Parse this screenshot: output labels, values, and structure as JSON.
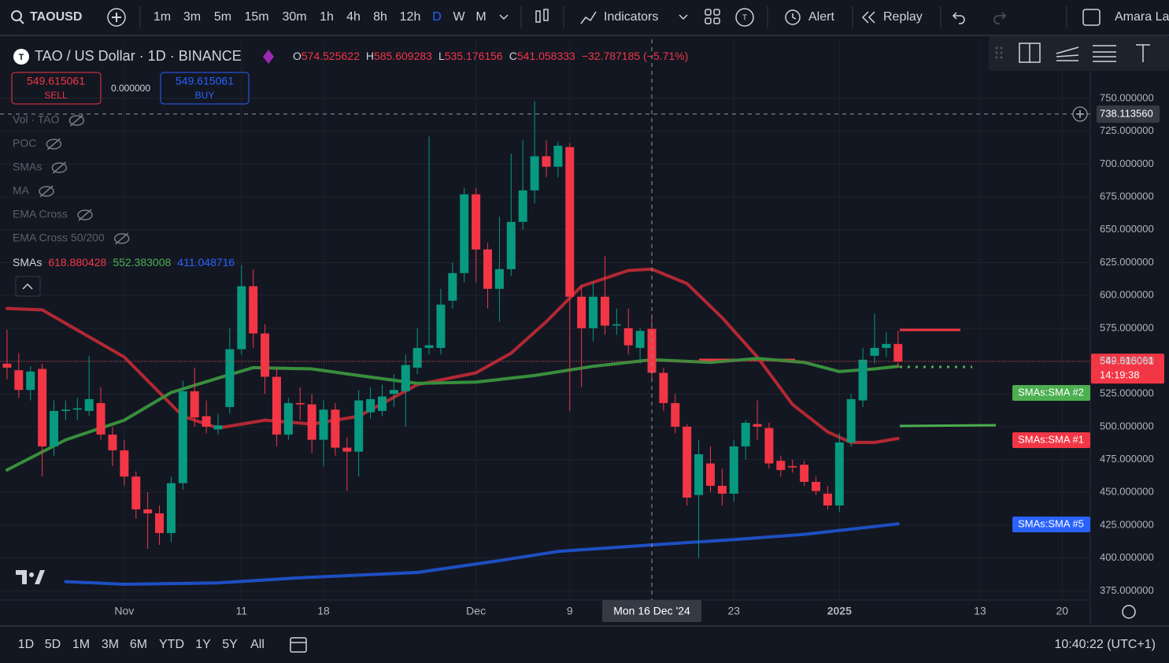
{
  "toolbar": {
    "symbol": "TAOUSD",
    "intervals": [
      "1m",
      "3m",
      "5m",
      "15m",
      "30m",
      "1h",
      "4h",
      "8h",
      "12h",
      "D",
      "W",
      "M"
    ],
    "indicators": "Indicators",
    "alert": "Alert",
    "replay": "Replay",
    "user": "Amara La"
  },
  "legend": {
    "title": "TAO / US Dollar · 1D · BINANCE",
    "ohlc_letters": [
      "O",
      "H",
      "L",
      "C"
    ],
    "change": "−32.787185 (−5.71%)",
    "sell": {
      "price": 549.615061,
      "label": "SELL"
    },
    "spread": "0.000000",
    "buy": {
      "price": 549.615061,
      "label": "BUY"
    },
    "hidden_indicators": [
      "Vol · TAO",
      "POC",
      "SMAs",
      "MA",
      "EMA Cross",
      "EMA Cross 50/200"
    ],
    "sma_label": "SMAs",
    "sma_values": [
      618.880428,
      552.383008,
      411.048716
    ]
  },
  "chart_data": {
    "type": "candlestick",
    "xlim": [
      -0.6,
      92.4
    ],
    "ylim": [
      368,
      795
    ],
    "up_color": "#089981",
    "down_color": "#f23645",
    "grid": true,
    "xticks": [
      {
        "value": 10,
        "label": "Nov"
      },
      {
        "value": 20,
        "label": "11"
      },
      {
        "value": 27,
        "label": "18"
      },
      {
        "value": 40,
        "label": "Dec"
      },
      {
        "value": 48,
        "label": "9"
      },
      {
        "value": 62,
        "label": "23"
      },
      {
        "value": 71,
        "label": "2025"
      },
      {
        "value": 83,
        "label": "13"
      },
      {
        "value": 90,
        "label": "20"
      }
    ],
    "yticks": [
      {
        "value": 375,
        "label": "375.000000"
      },
      {
        "value": 400,
        "label": "400.000000"
      },
      {
        "value": 425,
        "label": "425.000000"
      },
      {
        "value": 450,
        "label": "450.000000"
      },
      {
        "value": 475,
        "label": "475.000000"
      },
      {
        "value": 500,
        "label": "500.000000"
      },
      {
        "value": 525,
        "label": "525.000000"
      },
      {
        "value": 550,
        "label": "550.000000"
      },
      {
        "value": 575,
        "label": "575.000000"
      },
      {
        "value": 600,
        "label": "600.000000"
      },
      {
        "value": 625,
        "label": "625.000000"
      },
      {
        "value": 650,
        "label": "650.000000"
      },
      {
        "value": 675,
        "label": "675.000000"
      },
      {
        "value": 700,
        "label": "700.000000"
      },
      {
        "value": 725,
        "label": "725.000000"
      },
      {
        "value": 750,
        "label": "750.000000"
      }
    ],
    "candles": [
      [
        548,
        574,
        536,
        545
      ],
      [
        543,
        556,
        522,
        528
      ],
      [
        528,
        546,
        520,
        542
      ],
      [
        544,
        548,
        462,
        485
      ],
      [
        485,
        520,
        478,
        512
      ],
      [
        512,
        520,
        505,
        513
      ],
      [
        513,
        522,
        505,
        514
      ],
      [
        512,
        554,
        508,
        521
      ],
      [
        518,
        530,
        490,
        494
      ],
      [
        494,
        500,
        470,
        482
      ],
      [
        482,
        490,
        455,
        462
      ],
      [
        462,
        466,
        430,
        437
      ],
      [
        437,
        450,
        407,
        434
      ],
      [
        434,
        440,
        410,
        419
      ],
      [
        419,
        462,
        412,
        457
      ],
      [
        457,
        535,
        452,
        527
      ],
      [
        527,
        545,
        500,
        507
      ],
      [
        508,
        520,
        495,
        500
      ],
      [
        498,
        510,
        494,
        501
      ],
      [
        515,
        575,
        510,
        559
      ],
      [
        559,
        623,
        555,
        607
      ],
      [
        607,
        620,
        560,
        571
      ],
      [
        571,
        578,
        525,
        538
      ],
      [
        538,
        545,
        485,
        494
      ],
      [
        494,
        522,
        490,
        518
      ],
      [
        518,
        530,
        505,
        517
      ],
      [
        517,
        525,
        480,
        490
      ],
      [
        490,
        520,
        470,
        513
      ],
      [
        513,
        518,
        478,
        484
      ],
      [
        484,
        492,
        451,
        481
      ],
      [
        481,
        528,
        462,
        520
      ],
      [
        511,
        530,
        506,
        521
      ],
      [
        512,
        532,
        508,
        523
      ],
      [
        525,
        540,
        515,
        528
      ],
      [
        527,
        555,
        500,
        547
      ],
      [
        545,
        575,
        540,
        560
      ],
      [
        560,
        721,
        555,
        562
      ],
      [
        560,
        605,
        555,
        593
      ],
      [
        596,
        625,
        590,
        617
      ],
      [
        617,
        682,
        610,
        677
      ],
      [
        677,
        682,
        610,
        635
      ],
      [
        635,
        640,
        590,
        605
      ],
      [
        605,
        660,
        580,
        620
      ],
      [
        620,
        708,
        615,
        656
      ],
      [
        656,
        718,
        650,
        680
      ],
      [
        680,
        748,
        670,
        706
      ],
      [
        706,
        718,
        690,
        698
      ],
      [
        698,
        717,
        690,
        714
      ],
      [
        713,
        716,
        512,
        599
      ],
      [
        599,
        608,
        530,
        575
      ],
      [
        575,
        610,
        565,
        599
      ],
      [
        599,
        630,
        570,
        577
      ],
      [
        577,
        590,
        570,
        578
      ],
      [
        575,
        590,
        555,
        562
      ],
      [
        560,
        575,
        548,
        573
      ],
      [
        574.525622,
        585.609283,
        535.176156,
        541.058333
      ],
      [
        541,
        545,
        512,
        518
      ],
      [
        518,
        525,
        495,
        500
      ],
      [
        500,
        502,
        440,
        446
      ],
      [
        448,
        490,
        400,
        479
      ],
      [
        472,
        485,
        450,
        455
      ],
      [
        455,
        468,
        440,
        449
      ],
      [
        449,
        490,
        443,
        485
      ],
      [
        485,
        505,
        475,
        503
      ],
      [
        502,
        520,
        490,
        500
      ],
      [
        499,
        503,
        468,
        472
      ],
      [
        474,
        478,
        462,
        467
      ],
      [
        470,
        475,
        465,
        469
      ],
      [
        471,
        474,
        455,
        458
      ],
      [
        458,
        462,
        448,
        451
      ],
      [
        449,
        455,
        437,
        440
      ],
      [
        440,
        495,
        435,
        488
      ],
      [
        488,
        525,
        485,
        521
      ],
      [
        520,
        560,
        515,
        551
      ],
      [
        554,
        586,
        548,
        560
      ],
      [
        560,
        572,
        553,
        563
      ],
      [
        563,
        573,
        545,
        549.615061
      ]
    ],
    "series": [
      {
        "name": "SMAs:SMA #1",
        "color": "#b22833",
        "x": [
          0,
          3,
          10,
          15,
          18,
          22,
          26,
          30,
          35,
          40,
          43,
          46,
          49,
          53,
          55,
          58,
          61,
          64,
          67,
          70,
          72,
          74,
          76
        ],
        "values": [
          590,
          589,
          553,
          508,
          499,
          505,
          502,
          508,
          532,
          541,
          556,
          580,
          607,
          619,
          620,
          609,
          583,
          553,
          517,
          496,
          488,
          488,
          491
        ]
      },
      {
        "name": "SMAs:SMA #2",
        "color": "#388e3c",
        "x": [
          0,
          5,
          10,
          14,
          18,
          21,
          26,
          30,
          35,
          40,
          45,
          50,
          55,
          60,
          64,
          68,
          71,
          74,
          76
        ],
        "values": [
          467,
          490,
          505,
          526,
          537,
          545,
          544,
          539,
          533,
          534,
          539,
          546,
          551,
          549,
          552,
          549,
          542,
          544,
          546
        ]
      },
      {
        "name": "SMAs:SMA #5",
        "color": "#1e4fc2",
        "x": [
          5,
          10,
          18,
          25,
          35,
          42,
          47,
          55,
          62,
          68,
          72,
          76
        ],
        "values": [
          382,
          380,
          381,
          385,
          389,
          398,
          405,
          410,
          414,
          418,
          422,
          426
        ]
      }
    ],
    "last_price": 549.615061,
    "countdown": "14:19:38",
    "crosshair": {
      "index": 55,
      "date_label": "Mon 16 Dec '24",
      "price": {
        "value": 738.11356,
        "label": "738.113560"
      }
    }
  },
  "bottom_bar": {
    "ranges": [
      "1D",
      "5D",
      "1M",
      "3M",
      "6M",
      "YTD",
      "1Y",
      "5Y",
      "All"
    ],
    "clock": "10:40:22 (UTC+1)"
  }
}
